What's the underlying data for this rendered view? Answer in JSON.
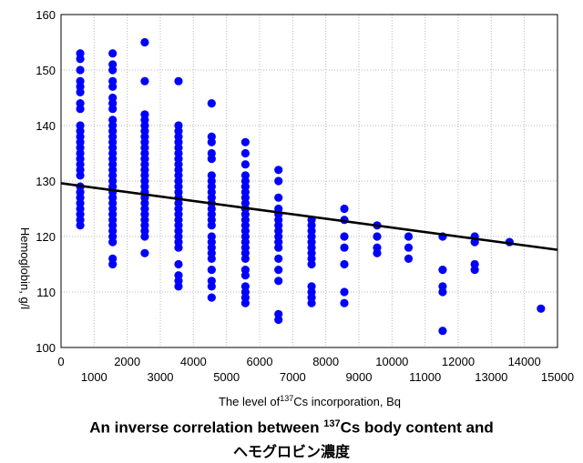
{
  "chart_data": {
    "type": "scatter",
    "xlabel_pre": "The level of",
    "xlabel_sup": "137",
    "xlabel_post": "Cs incorporation, Bq",
    "ylabel": "Hemoglobin, g/l",
    "xlim": [
      0,
      15000
    ],
    "ylim": [
      100,
      160
    ],
    "x_ticks_even": [
      0,
      2000,
      4000,
      6000,
      8000,
      10000,
      12000,
      14000
    ],
    "x_ticks_odd": [
      1000,
      3000,
      5000,
      7000,
      9000,
      11000,
      13000,
      15000
    ],
    "y_ticks": [
      100,
      110,
      120,
      130,
      140,
      150,
      160
    ],
    "grid": true,
    "point_color": "#0000ff",
    "trendline": {
      "x": [
        0,
        15000
      ],
      "y": [
        129.6,
        117.6
      ]
    },
    "points": [
      [
        580,
        153
      ],
      [
        580,
        152
      ],
      [
        580,
        150
      ],
      [
        580,
        148
      ],
      [
        580,
        147
      ],
      [
        580,
        146
      ],
      [
        580,
        144
      ],
      [
        580,
        143
      ],
      [
        580,
        140
      ],
      [
        580,
        139
      ],
      [
        580,
        138
      ],
      [
        580,
        137
      ],
      [
        580,
        136
      ],
      [
        580,
        135
      ],
      [
        580,
        134
      ],
      [
        580,
        133
      ],
      [
        580,
        132
      ],
      [
        580,
        131
      ],
      [
        580,
        129
      ],
      [
        580,
        128
      ],
      [
        580,
        127
      ],
      [
        580,
        126
      ],
      [
        580,
        125
      ],
      [
        580,
        124
      ],
      [
        580,
        123
      ],
      [
        580,
        122
      ],
      [
        1560,
        153
      ],
      [
        1560,
        151
      ],
      [
        1560,
        150
      ],
      [
        1560,
        148
      ],
      [
        1560,
        147
      ],
      [
        1560,
        145
      ],
      [
        1560,
        144
      ],
      [
        1560,
        143
      ],
      [
        1560,
        141
      ],
      [
        1560,
        140
      ],
      [
        1560,
        139
      ],
      [
        1560,
        138
      ],
      [
        1560,
        137
      ],
      [
        1560,
        136
      ],
      [
        1560,
        135
      ],
      [
        1560,
        134
      ],
      [
        1560,
        133
      ],
      [
        1560,
        132
      ],
      [
        1560,
        131
      ],
      [
        1560,
        130
      ],
      [
        1560,
        129
      ],
      [
        1560,
        128
      ],
      [
        1560,
        127
      ],
      [
        1560,
        126
      ],
      [
        1560,
        125
      ],
      [
        1560,
        124
      ],
      [
        1560,
        123
      ],
      [
        1560,
        122
      ],
      [
        1560,
        121
      ],
      [
        1560,
        120
      ],
      [
        1560,
        119
      ],
      [
        1560,
        116
      ],
      [
        1560,
        115
      ],
      [
        2530,
        155
      ],
      [
        2530,
        148
      ],
      [
        2530,
        142
      ],
      [
        2530,
        141
      ],
      [
        2530,
        140
      ],
      [
        2530,
        139
      ],
      [
        2530,
        138
      ],
      [
        2530,
        137
      ],
      [
        2530,
        136
      ],
      [
        2530,
        135
      ],
      [
        2530,
        134
      ],
      [
        2530,
        133
      ],
      [
        2530,
        132
      ],
      [
        2530,
        131
      ],
      [
        2530,
        130
      ],
      [
        2530,
        129
      ],
      [
        2530,
        128
      ],
      [
        2530,
        127
      ],
      [
        2530,
        126
      ],
      [
        2530,
        125
      ],
      [
        2530,
        124
      ],
      [
        2530,
        123
      ],
      [
        2530,
        122
      ],
      [
        2530,
        121
      ],
      [
        2530,
        120
      ],
      [
        2530,
        117
      ],
      [
        3550,
        148
      ],
      [
        3550,
        140
      ],
      [
        3550,
        139
      ],
      [
        3550,
        138
      ],
      [
        3550,
        137
      ],
      [
        3550,
        136
      ],
      [
        3550,
        135
      ],
      [
        3550,
        134
      ],
      [
        3550,
        133
      ],
      [
        3550,
        132
      ],
      [
        3550,
        131
      ],
      [
        3550,
        130
      ],
      [
        3550,
        129
      ],
      [
        3550,
        128
      ],
      [
        3550,
        127
      ],
      [
        3550,
        126
      ],
      [
        3550,
        125
      ],
      [
        3550,
        124
      ],
      [
        3550,
        123
      ],
      [
        3550,
        122
      ],
      [
        3550,
        121
      ],
      [
        3550,
        120
      ],
      [
        3550,
        119
      ],
      [
        3550,
        118
      ],
      [
        3550,
        115
      ],
      [
        3550,
        113
      ],
      [
        3550,
        112
      ],
      [
        3550,
        111
      ],
      [
        4550,
        144
      ],
      [
        4550,
        138
      ],
      [
        4550,
        137
      ],
      [
        4550,
        135
      ],
      [
        4550,
        134
      ],
      [
        4550,
        131
      ],
      [
        4550,
        130
      ],
      [
        4550,
        129
      ],
      [
        4550,
        128
      ],
      [
        4550,
        127
      ],
      [
        4550,
        126
      ],
      [
        4550,
        125
      ],
      [
        4550,
        124
      ],
      [
        4550,
        123
      ],
      [
        4550,
        122
      ],
      [
        4550,
        120
      ],
      [
        4550,
        119
      ],
      [
        4550,
        118
      ],
      [
        4550,
        117
      ],
      [
        4550,
        116
      ],
      [
        4550,
        114
      ],
      [
        4550,
        112
      ],
      [
        4550,
        111
      ],
      [
        4550,
        109
      ],
      [
        5570,
        137
      ],
      [
        5570,
        135
      ],
      [
        5570,
        133
      ],
      [
        5570,
        131
      ],
      [
        5570,
        130
      ],
      [
        5570,
        129
      ],
      [
        5570,
        128
      ],
      [
        5570,
        127
      ],
      [
        5570,
        126
      ],
      [
        5570,
        125
      ],
      [
        5570,
        124
      ],
      [
        5570,
        123
      ],
      [
        5570,
        122
      ],
      [
        5570,
        121
      ],
      [
        5570,
        120
      ],
      [
        5570,
        119
      ],
      [
        5570,
        118
      ],
      [
        5570,
        117
      ],
      [
        5570,
        116
      ],
      [
        5570,
        114
      ],
      [
        5570,
        113
      ],
      [
        5570,
        111
      ],
      [
        5570,
        110
      ],
      [
        5570,
        109
      ],
      [
        5570,
        108
      ],
      [
        6570,
        132
      ],
      [
        6570,
        130
      ],
      [
        6570,
        127
      ],
      [
        6570,
        125
      ],
      [
        6570,
        124
      ],
      [
        6570,
        123
      ],
      [
        6570,
        122
      ],
      [
        6570,
        121
      ],
      [
        6570,
        120
      ],
      [
        6570,
        119
      ],
      [
        6570,
        118
      ],
      [
        6570,
        116
      ],
      [
        6570,
        114
      ],
      [
        6570,
        112
      ],
      [
        6570,
        106
      ],
      [
        6570,
        105
      ],
      [
        7570,
        123
      ],
      [
        7570,
        122
      ],
      [
        7570,
        121
      ],
      [
        7570,
        120
      ],
      [
        7570,
        119
      ],
      [
        7570,
        118
      ],
      [
        7570,
        117
      ],
      [
        7570,
        116
      ],
      [
        7570,
        115
      ],
      [
        7570,
        111
      ],
      [
        7570,
        110
      ],
      [
        7570,
        109
      ],
      [
        7570,
        108
      ],
      [
        8560,
        125
      ],
      [
        8560,
        123
      ],
      [
        8560,
        120
      ],
      [
        8560,
        118
      ],
      [
        8560,
        115
      ],
      [
        8560,
        110
      ],
      [
        8560,
        108
      ],
      [
        9550,
        122
      ],
      [
        9550,
        120
      ],
      [
        9550,
        118
      ],
      [
        9550,
        117
      ],
      [
        10500,
        120
      ],
      [
        10500,
        118
      ],
      [
        10500,
        116
      ],
      [
        11530,
        120
      ],
      [
        11530,
        114
      ],
      [
        11530,
        111
      ],
      [
        11530,
        110
      ],
      [
        11530,
        103
      ],
      [
        12500,
        120
      ],
      [
        12500,
        119
      ],
      [
        12500,
        115
      ],
      [
        12500,
        114
      ],
      [
        13550,
        119
      ],
      [
        14500,
        107
      ]
    ]
  },
  "caption": {
    "line1_pre": "An inverse correlation between ",
    "line1_sup": "137",
    "line1_post": "Cs body content and",
    "line2": "ヘモグロビン濃度"
  }
}
